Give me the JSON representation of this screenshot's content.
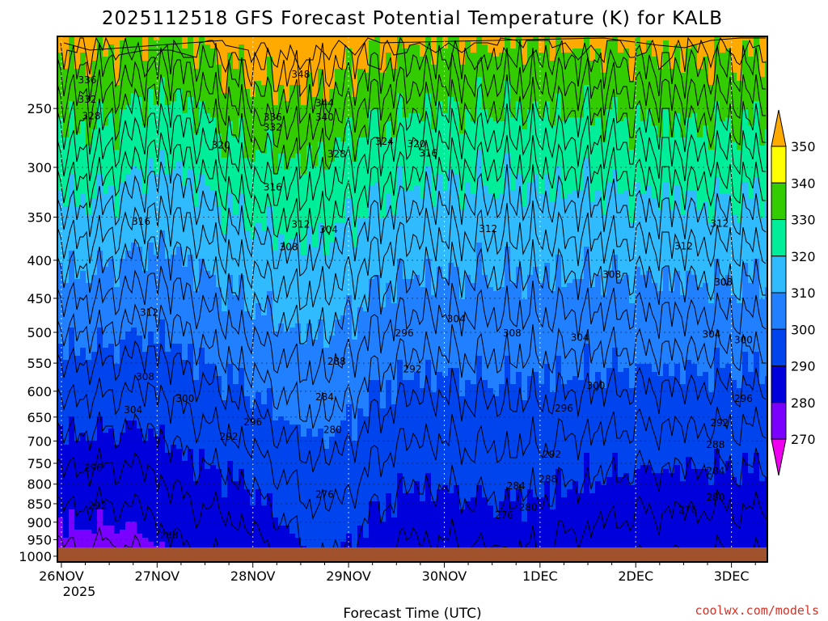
{
  "chart_data": {
    "type": "heatmap",
    "title": "2025112518 GFS Forecast Potential Temperature (K) for KALB",
    "xlabel": "Forecast Time (UTC)",
    "ylabel": "",
    "credit": "coolwx.com/models",
    "x_categories": [
      "26NOV",
      "27NOV",
      "28NOV",
      "29NOV",
      "30NOV",
      "1DEC",
      "2DEC",
      "3DEC"
    ],
    "x_year": "2025",
    "x_range_hours": [
      -1,
      177
    ],
    "y_levels": [
      "250",
      "300",
      "350",
      "400",
      "450",
      "500",
      "550",
      "600",
      "650",
      "700",
      "750",
      "800",
      "850",
      "900",
      "950",
      "1000"
    ],
    "y_range_hpa": [
      200,
      1018
    ],
    "colorbar": {
      "ticks": [
        "270",
        "280",
        "290",
        "300",
        "310",
        "320",
        "330",
        "340",
        "350"
      ],
      "colors": [
        "#ee00ee",
        "#bb00ff",
        "#7a00ff",
        "#0000dd",
        "#0044ee",
        "#2080ff",
        "#30bbff",
        "#00ee99",
        "#33cc00",
        "#ffff00",
        "#ffaa00"
      ]
    },
    "contour_labels": [
      {
        "t": "336",
        "h": 6.5,
        "p": 229
      },
      {
        "t": "332",
        "h": 6.5,
        "p": 243
      },
      {
        "t": "328",
        "h": 7.5,
        "p": 256
      },
      {
        "t": "348",
        "h": 60,
        "p": 225
      },
      {
        "t": "344",
        "h": 66,
        "p": 246
      },
      {
        "t": "340",
        "h": 66,
        "p": 257
      },
      {
        "t": "336",
        "h": 53,
        "p": 257
      },
      {
        "t": "332",
        "h": 53,
        "p": 265
      },
      {
        "t": "328",
        "h": 69,
        "p": 288
      },
      {
        "t": "324",
        "h": 81,
        "p": 277
      },
      {
        "t": "320",
        "h": 89,
        "p": 279
      },
      {
        "t": "316",
        "h": 92,
        "p": 287
      },
      {
        "t": "320",
        "h": 40,
        "p": 280
      },
      {
        "t": "316",
        "h": 53,
        "p": 319
      },
      {
        "t": "316",
        "h": 20,
        "p": 355
      },
      {
        "t": "312",
        "h": 60,
        "p": 358
      },
      {
        "t": "304",
        "h": 67,
        "p": 364
      },
      {
        "t": "308",
        "h": 57,
        "p": 384
      },
      {
        "t": "312",
        "h": 107,
        "p": 363
      },
      {
        "t": "312",
        "h": 156,
        "p": 383
      },
      {
        "t": "312",
        "h": 165,
        "p": 357
      },
      {
        "t": "308",
        "h": 138,
        "p": 418
      },
      {
        "t": "308",
        "h": 166,
        "p": 428
      },
      {
        "t": "312",
        "h": 22,
        "p": 470
      },
      {
        "t": "304",
        "h": 99,
        "p": 480
      },
      {
        "t": "308",
        "h": 113,
        "p": 501
      },
      {
        "t": "304",
        "h": 130,
        "p": 508
      },
      {
        "t": "304",
        "h": 163,
        "p": 503
      },
      {
        "t": "300",
        "h": 171,
        "p": 512
      },
      {
        "t": "296",
        "h": 86,
        "p": 501
      },
      {
        "t": "292",
        "h": 88,
        "p": 560
      },
      {
        "t": "288",
        "h": 69,
        "p": 547
      },
      {
        "t": "308",
        "h": 21,
        "p": 574
      },
      {
        "t": "300",
        "h": 31,
        "p": 614
      },
      {
        "t": "300",
        "h": 134,
        "p": 590
      },
      {
        "t": "304",
        "h": 18,
        "p": 636
      },
      {
        "t": "296",
        "h": 48,
        "p": 660
      },
      {
        "t": "296",
        "h": 126,
        "p": 633
      },
      {
        "t": "296",
        "h": 171,
        "p": 614
      },
      {
        "t": "292",
        "h": 42,
        "p": 691
      },
      {
        "t": "292",
        "h": 165,
        "p": 662
      },
      {
        "t": "284",
        "h": 66,
        "p": 611
      },
      {
        "t": "280",
        "h": 68,
        "p": 676
      },
      {
        "t": "292",
        "h": 123,
        "p": 730
      },
      {
        "t": "288",
        "h": 164,
        "p": 708
      },
      {
        "t": "284",
        "h": 164,
        "p": 768
      },
      {
        "t": "296",
        "h": 8,
        "p": 760
      },
      {
        "t": "288",
        "h": 122,
        "p": 788
      },
      {
        "t": "284",
        "h": 114,
        "p": 805
      },
      {
        "t": "280",
        "h": 164,
        "p": 833
      },
      {
        "t": "276",
        "h": 66,
        "p": 826
      },
      {
        "t": "280",
        "h": 117,
        "p": 860
      },
      {
        "t": "276",
        "h": 111,
        "p": 880
      },
      {
        "t": "276",
        "h": 157,
        "p": 866
      },
      {
        "t": "292",
        "h": 9,
        "p": 855
      },
      {
        "t": "288",
        "h": 27,
        "p": 937
      }
    ]
  }
}
